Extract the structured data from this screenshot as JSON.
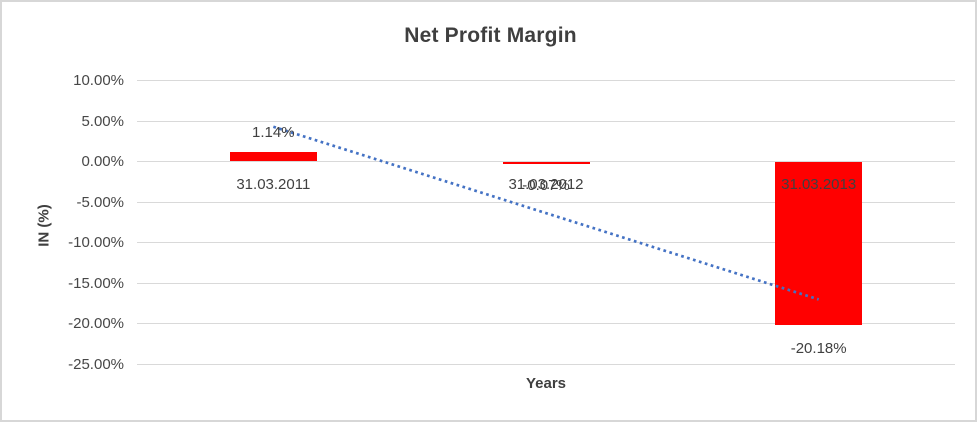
{
  "window": {
    "background_color": "#ffffff",
    "border_color": "#d7d7d7"
  },
  "chart_data": {
    "type": "bar",
    "title": "Net Profit Margin",
    "xlabel": "Years",
    "ylabel": "IN (%)",
    "categories": [
      "31.03.2011",
      "31.03.2012",
      "31.03.2013"
    ],
    "values": [
      1.14,
      -0.07,
      -20.18
    ],
    "data_labels": [
      "1.14%",
      "-0.07%",
      "-20.18%"
    ],
    "y_ticks": [
      "10.00%",
      "5.00%",
      "0.00%",
      "-5.00%",
      "-10.00%",
      "-15.00%",
      "-20.00%",
      "-25.00%"
    ],
    "y_tick_values": [
      10,
      5,
      0,
      -5,
      -10,
      -15,
      -20,
      -25
    ],
    "ylim": [
      -25,
      10
    ],
    "grid": true,
    "legend": false,
    "bar_color": "#ff0000",
    "trendline": {
      "type": "linear",
      "style": "dotted",
      "color": "#4472c4",
      "start_value": 4.29,
      "end_value": -17.03
    },
    "title_color": "#3f3f3f",
    "text_color": "#404040",
    "gridline_color": "#d9d9d9"
  }
}
